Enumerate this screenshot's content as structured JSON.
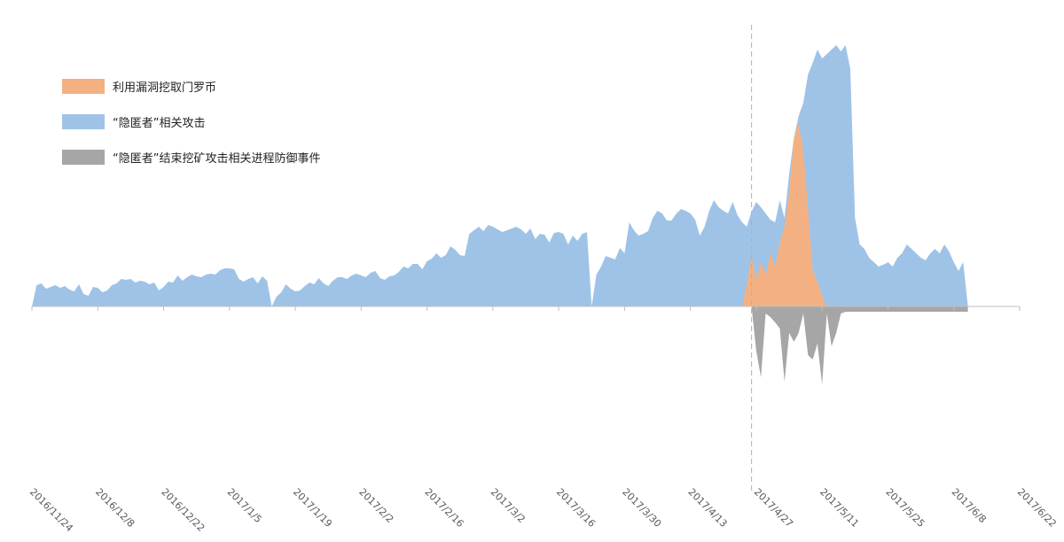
{
  "chart_data": {
    "type": "area",
    "title": "",
    "xlabel": "",
    "ylabel": "",
    "x_tick_labels": [
      "2016/11/24",
      "2016/12/8",
      "2016/12/22",
      "2017/1/5",
      "2017/1/19",
      "2017/2/2",
      "2017/2/16",
      "2017/3/2",
      "2017/3/16",
      "2017/3/30",
      "2017/4/13",
      "2017/4/27",
      "2017/5/11",
      "2017/5/25",
      "2017/6/8",
      "2017/6/22"
    ],
    "x_range": [
      "2016/11/24",
      "2017/6/22"
    ],
    "y_range": [
      -207,
      295
    ],
    "grid": false,
    "legend_position": "top-left",
    "reference_line_date": "2017/4/26",
    "series": [
      {
        "name": "利用漏洞挖取门罗币",
        "color": "#f3b183",
        "points": [
          [
            "2017/4/24",
            0
          ],
          [
            "2017/4/25",
            25
          ],
          [
            "2017/4/26",
            57
          ],
          [
            "2017/4/27",
            30
          ],
          [
            "2017/4/28",
            50
          ],
          [
            "2017/4/29",
            35
          ],
          [
            "2017/4/30",
            60
          ],
          [
            "2017/5/1",
            45
          ],
          [
            "2017/5/2",
            72
          ],
          [
            "2017/5/3",
            90
          ],
          [
            "2017/5/4",
            130
          ],
          [
            "2017/5/5",
            190
          ],
          [
            "2017/5/6",
            207
          ],
          [
            "2017/5/7",
            175
          ],
          [
            "2017/5/8",
            110
          ],
          [
            "2017/5/9",
            40
          ],
          [
            "2017/5/10",
            28
          ],
          [
            "2017/5/11",
            12
          ],
          [
            "2017/5/12",
            0
          ]
        ]
      },
      {
        "name": "“隐匿者”相关攻击",
        "color": "#9fc3e7",
        "points": [
          [
            "2016/11/24",
            0
          ],
          [
            "2016/11/25",
            24
          ],
          [
            "2016/11/26",
            26
          ],
          [
            "2016/11/27",
            20
          ],
          [
            "2016/11/28",
            22
          ],
          [
            "2016/11/29",
            24
          ],
          [
            "2016/11/30",
            21
          ],
          [
            "2016/12/1",
            23
          ],
          [
            "2016/12/2",
            19
          ],
          [
            "2016/12/3",
            17
          ],
          [
            "2016/12/4",
            25
          ],
          [
            "2016/12/5",
            14
          ],
          [
            "2016/12/6",
            12
          ],
          [
            "2016/12/7",
            22
          ],
          [
            "2016/12/8",
            21
          ],
          [
            "2016/12/9",
            16
          ],
          [
            "2016/12/10",
            18
          ],
          [
            "2016/12/11",
            24
          ],
          [
            "2016/12/12",
            26
          ],
          [
            "2016/12/13",
            31
          ],
          [
            "2016/12/14",
            30
          ],
          [
            "2016/12/15",
            31
          ],
          [
            "2016/12/16",
            27
          ],
          [
            "2016/12/17",
            29
          ],
          [
            "2016/12/18",
            28
          ],
          [
            "2016/12/19",
            25
          ],
          [
            "2016/12/20",
            27
          ],
          [
            "2016/12/21",
            18
          ],
          [
            "2016/12/22",
            22
          ],
          [
            "2016/12/23",
            28
          ],
          [
            "2016/12/24",
            27
          ],
          [
            "2016/12/25",
            35
          ],
          [
            "2016/12/26",
            29
          ],
          [
            "2016/12/27",
            33
          ],
          [
            "2016/12/28",
            36
          ],
          [
            "2016/12/29",
            34
          ],
          [
            "2016/12/30",
            33
          ],
          [
            "2016/12/31",
            36
          ],
          [
            "2017/1/1",
            37
          ],
          [
            "2017/1/2",
            36
          ],
          [
            "2017/1/3",
            41
          ],
          [
            "2017/1/4",
            43
          ],
          [
            "2017/1/5",
            43
          ],
          [
            "2017/1/6",
            42
          ],
          [
            "2017/1/7",
            31
          ],
          [
            "2017/1/8",
            28
          ],
          [
            "2017/1/9",
            31
          ],
          [
            "2017/1/10",
            33
          ],
          [
            "2017/1/11",
            26
          ],
          [
            "2017/1/12",
            34
          ],
          [
            "2017/1/13",
            29
          ],
          [
            "2017/1/14",
            0
          ],
          [
            "2017/1/15",
            11
          ],
          [
            "2017/1/16",
            16
          ],
          [
            "2017/1/17",
            25
          ],
          [
            "2017/1/18",
            20
          ],
          [
            "2017/1/19",
            17
          ],
          [
            "2017/1/20",
            18
          ],
          [
            "2017/1/21",
            23
          ],
          [
            "2017/1/22",
            27
          ],
          [
            "2017/1/23",
            25
          ],
          [
            "2017/1/24",
            32
          ],
          [
            "2017/1/25",
            26
          ],
          [
            "2017/1/26",
            23
          ],
          [
            "2017/1/27",
            29
          ],
          [
            "2017/1/28",
            33
          ],
          [
            "2017/1/29",
            33
          ],
          [
            "2017/1/30",
            31
          ],
          [
            "2017/1/31",
            35
          ],
          [
            "2017/2/1",
            37
          ],
          [
            "2017/2/2",
            35
          ],
          [
            "2017/2/3",
            33
          ],
          [
            "2017/2/4",
            38
          ],
          [
            "2017/2/5",
            40
          ],
          [
            "2017/2/6",
            32
          ],
          [
            "2017/2/7",
            30
          ],
          [
            "2017/2/8",
            34
          ],
          [
            "2017/2/9",
            35
          ],
          [
            "2017/2/10",
            39
          ],
          [
            "2017/2/11",
            45
          ],
          [
            "2017/2/12",
            43
          ],
          [
            "2017/2/13",
            48
          ],
          [
            "2017/2/14",
            48
          ],
          [
            "2017/2/15",
            42
          ],
          [
            "2017/2/16",
            51
          ],
          [
            "2017/2/17",
            54
          ],
          [
            "2017/2/18",
            60
          ],
          [
            "2017/2/19",
            55
          ],
          [
            "2017/2/20",
            58
          ],
          [
            "2017/2/21",
            68
          ],
          [
            "2017/2/22",
            64
          ],
          [
            "2017/2/23",
            58
          ],
          [
            "2017/2/24",
            57
          ],
          [
            "2017/2/25",
            82
          ],
          [
            "2017/2/26",
            86
          ],
          [
            "2017/2/27",
            90
          ],
          [
            "2017/2/28",
            85
          ],
          [
            "2017/3/1",
            92
          ],
          [
            "2017/3/2",
            90
          ],
          [
            "2017/3/3",
            87
          ],
          [
            "2017/3/4",
            84
          ],
          [
            "2017/3/5",
            86
          ],
          [
            "2017/3/6",
            88
          ],
          [
            "2017/3/7",
            90
          ],
          [
            "2017/3/8",
            87
          ],
          [
            "2017/3/9",
            82
          ],
          [
            "2017/3/10",
            88
          ],
          [
            "2017/3/11",
            76
          ],
          [
            "2017/3/12",
            82
          ],
          [
            "2017/3/13",
            81
          ],
          [
            "2017/3/14",
            72
          ],
          [
            "2017/3/15",
            83
          ],
          [
            "2017/3/16",
            84
          ],
          [
            "2017/3/17",
            82
          ],
          [
            "2017/3/18",
            70
          ],
          [
            "2017/3/19",
            80
          ],
          [
            "2017/3/20",
            74
          ],
          [
            "2017/3/21",
            82
          ],
          [
            "2017/3/22",
            84
          ],
          [
            "2017/3/23",
            0
          ],
          [
            "2017/3/24",
            36
          ],
          [
            "2017/3/25",
            45
          ],
          [
            "2017/3/26",
            57
          ],
          [
            "2017/3/27",
            55
          ],
          [
            "2017/3/28",
            53
          ],
          [
            "2017/3/29",
            66
          ],
          [
            "2017/3/30",
            60
          ],
          [
            "2017/3/31",
            95
          ],
          [
            "2017/4/1",
            86
          ],
          [
            "2017/4/2",
            80
          ],
          [
            "2017/4/3",
            82
          ],
          [
            "2017/4/4",
            85
          ],
          [
            "2017/4/5",
            100
          ],
          [
            "2017/4/6",
            108
          ],
          [
            "2017/4/7",
            105
          ],
          [
            "2017/4/8",
            97
          ],
          [
            "2017/4/9",
            97
          ],
          [
            "2017/4/10",
            105
          ],
          [
            "2017/4/11",
            110
          ],
          [
            "2017/4/12",
            108
          ],
          [
            "2017/4/13",
            105
          ],
          [
            "2017/4/14",
            98
          ],
          [
            "2017/4/15",
            80
          ],
          [
            "2017/4/16",
            90
          ],
          [
            "2017/4/17",
            108
          ],
          [
            "2017/4/18",
            120
          ],
          [
            "2017/4/19",
            112
          ],
          [
            "2017/4/20",
            108
          ],
          [
            "2017/4/21",
            105
          ],
          [
            "2017/4/22",
            118
          ],
          [
            "2017/4/23",
            103
          ],
          [
            "2017/4/24",
            95
          ],
          [
            "2017/4/25",
            90
          ],
          [
            "2017/4/26",
            107
          ],
          [
            "2017/4/27",
            118
          ],
          [
            "2017/4/28",
            112
          ],
          [
            "2017/4/29",
            105
          ],
          [
            "2017/4/30",
            98
          ],
          [
            "2017/5/1",
            95
          ],
          [
            "2017/5/2",
            120
          ],
          [
            "2017/5/3",
            100
          ],
          [
            "2017/5/4",
            150
          ],
          [
            "2017/5/5",
            190
          ],
          [
            "2017/5/6",
            215
          ],
          [
            "2017/5/7",
            230
          ],
          [
            "2017/5/8",
            262
          ],
          [
            "2017/5/9",
            275
          ],
          [
            "2017/5/10",
            290
          ],
          [
            "2017/5/11",
            280
          ],
          [
            "2017/5/12",
            285
          ],
          [
            "2017/5/13",
            290
          ],
          [
            "2017/5/14",
            295
          ],
          [
            "2017/5/15",
            288
          ],
          [
            "2017/5/16",
            295
          ],
          [
            "2017/5/17",
            268
          ],
          [
            "2017/5/18",
            100
          ],
          [
            "2017/5/19",
            70
          ],
          [
            "2017/5/20",
            65
          ],
          [
            "2017/5/21",
            55
          ],
          [
            "2017/5/22",
            50
          ],
          [
            "2017/5/23",
            45
          ],
          [
            "2017/5/24",
            47
          ],
          [
            "2017/5/25",
            50
          ],
          [
            "2017/5/26",
            45
          ],
          [
            "2017/5/27",
            55
          ],
          [
            "2017/5/28",
            60
          ],
          [
            "2017/5/29",
            70
          ],
          [
            "2017/5/30",
            65
          ],
          [
            "2017/5/31",
            60
          ],
          [
            "2017/6/1",
            55
          ],
          [
            "2017/6/2",
            52
          ],
          [
            "2017/6/3",
            60
          ],
          [
            "2017/6/4",
            65
          ],
          [
            "2017/6/5",
            60
          ],
          [
            "2017/6/6",
            70
          ],
          [
            "2017/6/7",
            62
          ],
          [
            "2017/6/8",
            50
          ],
          [
            "2017/6/9",
            40
          ],
          [
            "2017/6/10",
            50
          ],
          [
            "2017/6/11",
            0
          ]
        ]
      },
      {
        "name": "“隐匿者”结束挖矿攻击相关进程防御事件",
        "color": "#a6a6a6",
        "points": [
          [
            "2017/4/26",
            0
          ],
          [
            "2017/4/27",
            -50
          ],
          [
            "2017/4/28",
            -80
          ],
          [
            "2017/4/29",
            -8
          ],
          [
            "2017/4/30",
            -12
          ],
          [
            "2017/5/1",
            -18
          ],
          [
            "2017/5/2",
            -25
          ],
          [
            "2017/5/3",
            -85
          ],
          [
            "2017/5/4",
            -30
          ],
          [
            "2017/5/5",
            -40
          ],
          [
            "2017/5/6",
            -30
          ],
          [
            "2017/5/7",
            -8
          ],
          [
            "2017/5/8",
            -55
          ],
          [
            "2017/5/9",
            -60
          ],
          [
            "2017/5/10",
            -42
          ],
          [
            "2017/5/11",
            -88
          ],
          [
            "2017/5/12",
            -8
          ],
          [
            "2017/5/13",
            -45
          ],
          [
            "2017/5/14",
            -30
          ],
          [
            "2017/5/15",
            -8
          ],
          [
            "2017/5/16",
            -6
          ],
          [
            "2017/5/17",
            -6
          ],
          [
            "2017/5/18",
            -6
          ],
          [
            "2017/5/19",
            -6
          ],
          [
            "2017/5/20",
            -6
          ],
          [
            "2017/5/21",
            -6
          ],
          [
            "2017/5/22",
            -6
          ],
          [
            "2017/5/23",
            -6
          ],
          [
            "2017/5/24",
            -6
          ],
          [
            "2017/5/25",
            -6
          ],
          [
            "2017/5/26",
            -6
          ],
          [
            "2017/5/27",
            -6
          ],
          [
            "2017/5/28",
            -6
          ],
          [
            "2017/5/29",
            -6
          ],
          [
            "2017/5/30",
            -6
          ],
          [
            "2017/5/31",
            -6
          ],
          [
            "2017/6/1",
            -6
          ],
          [
            "2017/6/2",
            -6
          ],
          [
            "2017/6/3",
            -6
          ],
          [
            "2017/6/4",
            -6
          ],
          [
            "2017/6/5",
            -6
          ],
          [
            "2017/6/6",
            -6
          ],
          [
            "2017/6/7",
            -6
          ],
          [
            "2017/6/8",
            -6
          ],
          [
            "2017/6/9",
            -6
          ],
          [
            "2017/6/10",
            -6
          ],
          [
            "2017/6/11",
            -6
          ]
        ]
      }
    ]
  }
}
